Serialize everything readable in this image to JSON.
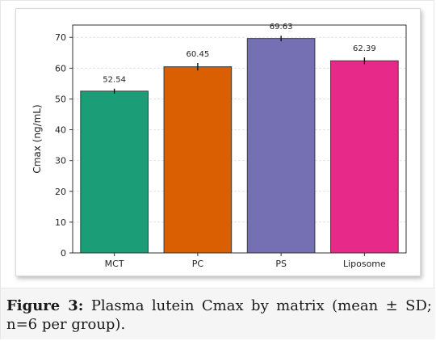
{
  "caption": {
    "label": "Figure 3:",
    "text": "Plasma lutein Cmax by matrix (mean ± SD; n=6 per group)."
  },
  "chart_data": {
    "type": "bar",
    "categories": [
      "MCT",
      "PC",
      "PS",
      "Liposome"
    ],
    "values": [
      52.54,
      60.45,
      69.63,
      62.39
    ],
    "value_labels": [
      "52.54",
      "60.45",
      "69.63",
      "62.39"
    ],
    "error": [
      0.8,
      1.2,
      0.9,
      1.1
    ],
    "colors": [
      "#1b9e77",
      "#d95f02",
      "#7570b3",
      "#e7298a"
    ],
    "title": "",
    "xlabel": "",
    "ylabel": "Cmax (ng/mL)",
    "ylim": [
      0,
      74
    ],
    "yticks": [
      0,
      10,
      20,
      30,
      40,
      50,
      60,
      70
    ],
    "grid": true
  }
}
